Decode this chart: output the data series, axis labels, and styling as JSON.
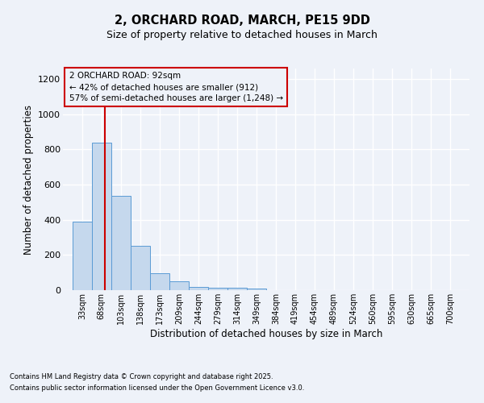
{
  "title1": "2, ORCHARD ROAD, MARCH, PE15 9DD",
  "title2": "Size of property relative to detached houses in March",
  "xlabel": "Distribution of detached houses by size in March",
  "ylabel": "Number of detached properties",
  "footnote1": "Contains HM Land Registry data © Crown copyright and database right 2025.",
  "footnote2": "Contains public sector information licensed under the Open Government Licence v3.0.",
  "annotation_line1": "2 ORCHARD ROAD: 92sqm",
  "annotation_line2": "← 42% of detached houses are smaller (912)",
  "annotation_line3": "57% of semi-detached houses are larger (1,248) →",
  "property_size_sqm": 92,
  "bar_edges": [
    33,
    68,
    103,
    138,
    173,
    209,
    244,
    279,
    314,
    349,
    384,
    419,
    454,
    489,
    524,
    560,
    595,
    630,
    665,
    700,
    735
  ],
  "bar_heights": [
    390,
    840,
    535,
    250,
    95,
    50,
    20,
    15,
    12,
    10,
    0,
    0,
    0,
    0,
    0,
    0,
    0,
    0,
    0,
    0
  ],
  "bar_color": "#c5d8ed",
  "bar_edge_color": "#5b9bd5",
  "vline_color": "#cc0000",
  "vline_x": 92,
  "annotation_box_color": "#cc0000",
  "background_color": "#eef2f9",
  "grid_color": "#ffffff",
  "ylim": [
    0,
    1260
  ],
  "yticks": [
    0,
    200,
    400,
    600,
    800,
    1000,
    1200
  ]
}
